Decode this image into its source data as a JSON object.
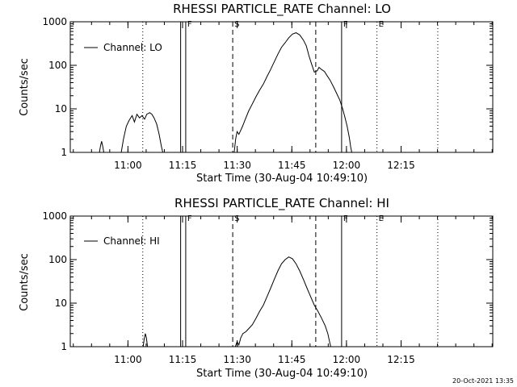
{
  "footer_timestamp": "20-Oct-2021 13:35",
  "colors": {
    "background": "#ffffff",
    "foreground": "#000000"
  },
  "chart_data": [
    {
      "type": "line",
      "title": "RHESSI PARTICLE_RATE Channel: LO",
      "xlabel": "Start Time (30-Aug-04 10:49:10)",
      "ylabel": "Counts/sec",
      "y_scale": "log",
      "ylim": [
        1,
        1000
      ],
      "xlim": [
        -5,
        111
      ],
      "x_units": "minutes after 10:49:10",
      "x_tick_labels": [
        "11:00",
        "11:15",
        "11:30",
        "11:45",
        "12:00",
        "12:15"
      ],
      "x_ticks": [
        10.83,
        25.83,
        40.83,
        55.83,
        70.83,
        85.83
      ],
      "y_tick_labels": [
        "1",
        "10",
        "100",
        "1000"
      ],
      "y_ticks": [
        1,
        10,
        100,
        1000
      ],
      "grid": false,
      "legend": {
        "label": "Channel: LO",
        "placement": "top-left"
      },
      "markers": [
        {
          "x": 26.7,
          "label": "F",
          "style": "solid"
        },
        {
          "x": 39.6,
          "label": "S",
          "style": "dashed"
        },
        {
          "x": 62.4,
          "label": "",
          "style": "dashed"
        },
        {
          "x": 69.5,
          "label": "F",
          "style": "solid"
        },
        {
          "x": 79.2,
          "label": "E",
          "style": "dotted"
        }
      ],
      "extra_lines": [
        {
          "x": 25.3,
          "style": "solid"
        },
        {
          "x": 14.9,
          "style": "dotted"
        },
        {
          "x": 95.9,
          "style": "dotted"
        }
      ],
      "series": [
        {
          "name": "Channel: LO",
          "segments": [
            [
              [
                3.0,
                1
              ],
              [
                3.3,
                1.4
              ],
              [
                3.6,
                1.8
              ],
              [
                3.9,
                1.4
              ],
              [
                4.2,
                1
              ]
            ],
            [
              [
                9.0,
                1
              ],
              [
                9.6,
                2
              ],
              [
                10.4,
                4
              ],
              [
                11.2,
                5.5
              ],
              [
                12.0,
                7
              ],
              [
                12.6,
                5
              ],
              [
                13.3,
                7.5
              ],
              [
                14.0,
                6.2
              ],
              [
                14.7,
                7
              ],
              [
                15.4,
                5.8
              ],
              [
                16.0,
                7.5
              ],
              [
                16.8,
                8.2
              ],
              [
                17.4,
                7.5
              ],
              [
                18.0,
                6.2
              ],
              [
                18.7,
                4.5
              ],
              [
                19.4,
                2.6
              ],
              [
                20.0,
                1.4
              ],
              [
                20.4,
                1
              ]
            ],
            [
              [
                40.0,
                1
              ],
              [
                40.4,
                2
              ],
              [
                40.8,
                3
              ],
              [
                41.3,
                2.6
              ],
              [
                41.8,
                3.2
              ],
              [
                42.3,
                4
              ],
              [
                43.0,
                5.6
              ],
              [
                44.0,
                9
              ],
              [
                45.0,
                13
              ],
              [
                46.0,
                19
              ],
              [
                47.0,
                27
              ],
              [
                48.0,
                37
              ],
              [
                49.0,
                55
              ],
              [
                50.0,
                80
              ],
              [
                51.0,
                120
              ],
              [
                52.0,
                180
              ],
              [
                53.0,
                260
              ],
              [
                54.0,
                330
              ],
              [
                55.0,
                430
              ],
              [
                56.0,
                520
              ],
              [
                57.0,
                560
              ],
              [
                58.0,
                500
              ],
              [
                59.0,
                380
              ],
              [
                59.8,
                280
              ],
              [
                60.5,
                170
              ],
              [
                61.2,
                110
              ],
              [
                62.0,
                70
              ],
              [
                62.8,
                75
              ],
              [
                63.3,
                90
              ],
              [
                64.0,
                80
              ],
              [
                64.8,
                72
              ],
              [
                65.5,
                58
              ],
              [
                66.3,
                46
              ],
              [
                67.2,
                33
              ],
              [
                68.0,
                24
              ],
              [
                69.0,
                16
              ],
              [
                69.8,
                10
              ],
              [
                70.4,
                6.5
              ],
              [
                71.0,
                4
              ],
              [
                71.6,
                2.2
              ],
              [
                72.0,
                1.3
              ],
              [
                72.3,
                1
              ]
            ]
          ]
        }
      ]
    },
    {
      "type": "line",
      "title": "RHESSI PARTICLE_RATE Channel: HI",
      "xlabel": "Start Time (30-Aug-04 10:49:10)",
      "ylabel": "Counts/sec",
      "y_scale": "log",
      "ylim": [
        1,
        1000
      ],
      "xlim": [
        -5,
        111
      ],
      "x_units": "minutes after 10:49:10",
      "x_tick_labels": [
        "11:00",
        "11:15",
        "11:30",
        "11:45",
        "12:00",
        "12:15"
      ],
      "x_ticks": [
        10.83,
        25.83,
        40.83,
        55.83,
        70.83,
        85.83
      ],
      "y_tick_labels": [
        "1",
        "10",
        "100",
        "1000"
      ],
      "y_ticks": [
        1,
        10,
        100,
        1000
      ],
      "grid": false,
      "legend": {
        "label": "Channel: HI",
        "placement": "top-left"
      },
      "markers": [
        {
          "x": 26.7,
          "label": "F",
          "style": "solid"
        },
        {
          "x": 39.6,
          "label": "S",
          "style": "dashed"
        },
        {
          "x": 62.4,
          "label": "",
          "style": "dashed"
        },
        {
          "x": 69.5,
          "label": "F",
          "style": "solid"
        },
        {
          "x": 79.2,
          "label": "E",
          "style": "dotted"
        }
      ],
      "extra_lines": [
        {
          "x": 25.3,
          "style": "solid"
        },
        {
          "x": 14.9,
          "style": "dotted"
        },
        {
          "x": 95.9,
          "style": "dotted"
        }
      ],
      "series": [
        {
          "name": "Channel: HI",
          "segments": [
            [
              [
                15.0,
                1
              ],
              [
                15.3,
                1.5
              ],
              [
                15.6,
                2
              ],
              [
                15.9,
                1.6
              ],
              [
                16.2,
                1
              ]
            ],
            [
              [
                40.3,
                1
              ],
              [
                40.8,
                1.3
              ],
              [
                41.3,
                1.1
              ],
              [
                41.8,
                1.6
              ],
              [
                42.4,
                2
              ],
              [
                43.2,
                2.2
              ],
              [
                44.0,
                2.6
              ],
              [
                45.0,
                3.2
              ],
              [
                46.0,
                4.5
              ],
              [
                47.0,
                6.5
              ],
              [
                48.0,
                9
              ],
              [
                49.0,
                14
              ],
              [
                50.0,
                22
              ],
              [
                51.0,
                35
              ],
              [
                52.0,
                55
              ],
              [
                53.0,
                80
              ],
              [
                54.0,
                100
              ],
              [
                55.0,
                115
              ],
              [
                56.0,
                105
              ],
              [
                57.0,
                80
              ],
              [
                58.0,
                55
              ],
              [
                59.0,
                35
              ],
              [
                60.0,
                22
              ],
              [
                61.0,
                14
              ],
              [
                62.0,
                9
              ],
              [
                63.0,
                6.5
              ],
              [
                64.0,
                4.5
              ],
              [
                65.0,
                3
              ],
              [
                65.7,
                2
              ],
              [
                66.2,
                1.3
              ],
              [
                66.5,
                1
              ]
            ]
          ]
        }
      ]
    }
  ]
}
